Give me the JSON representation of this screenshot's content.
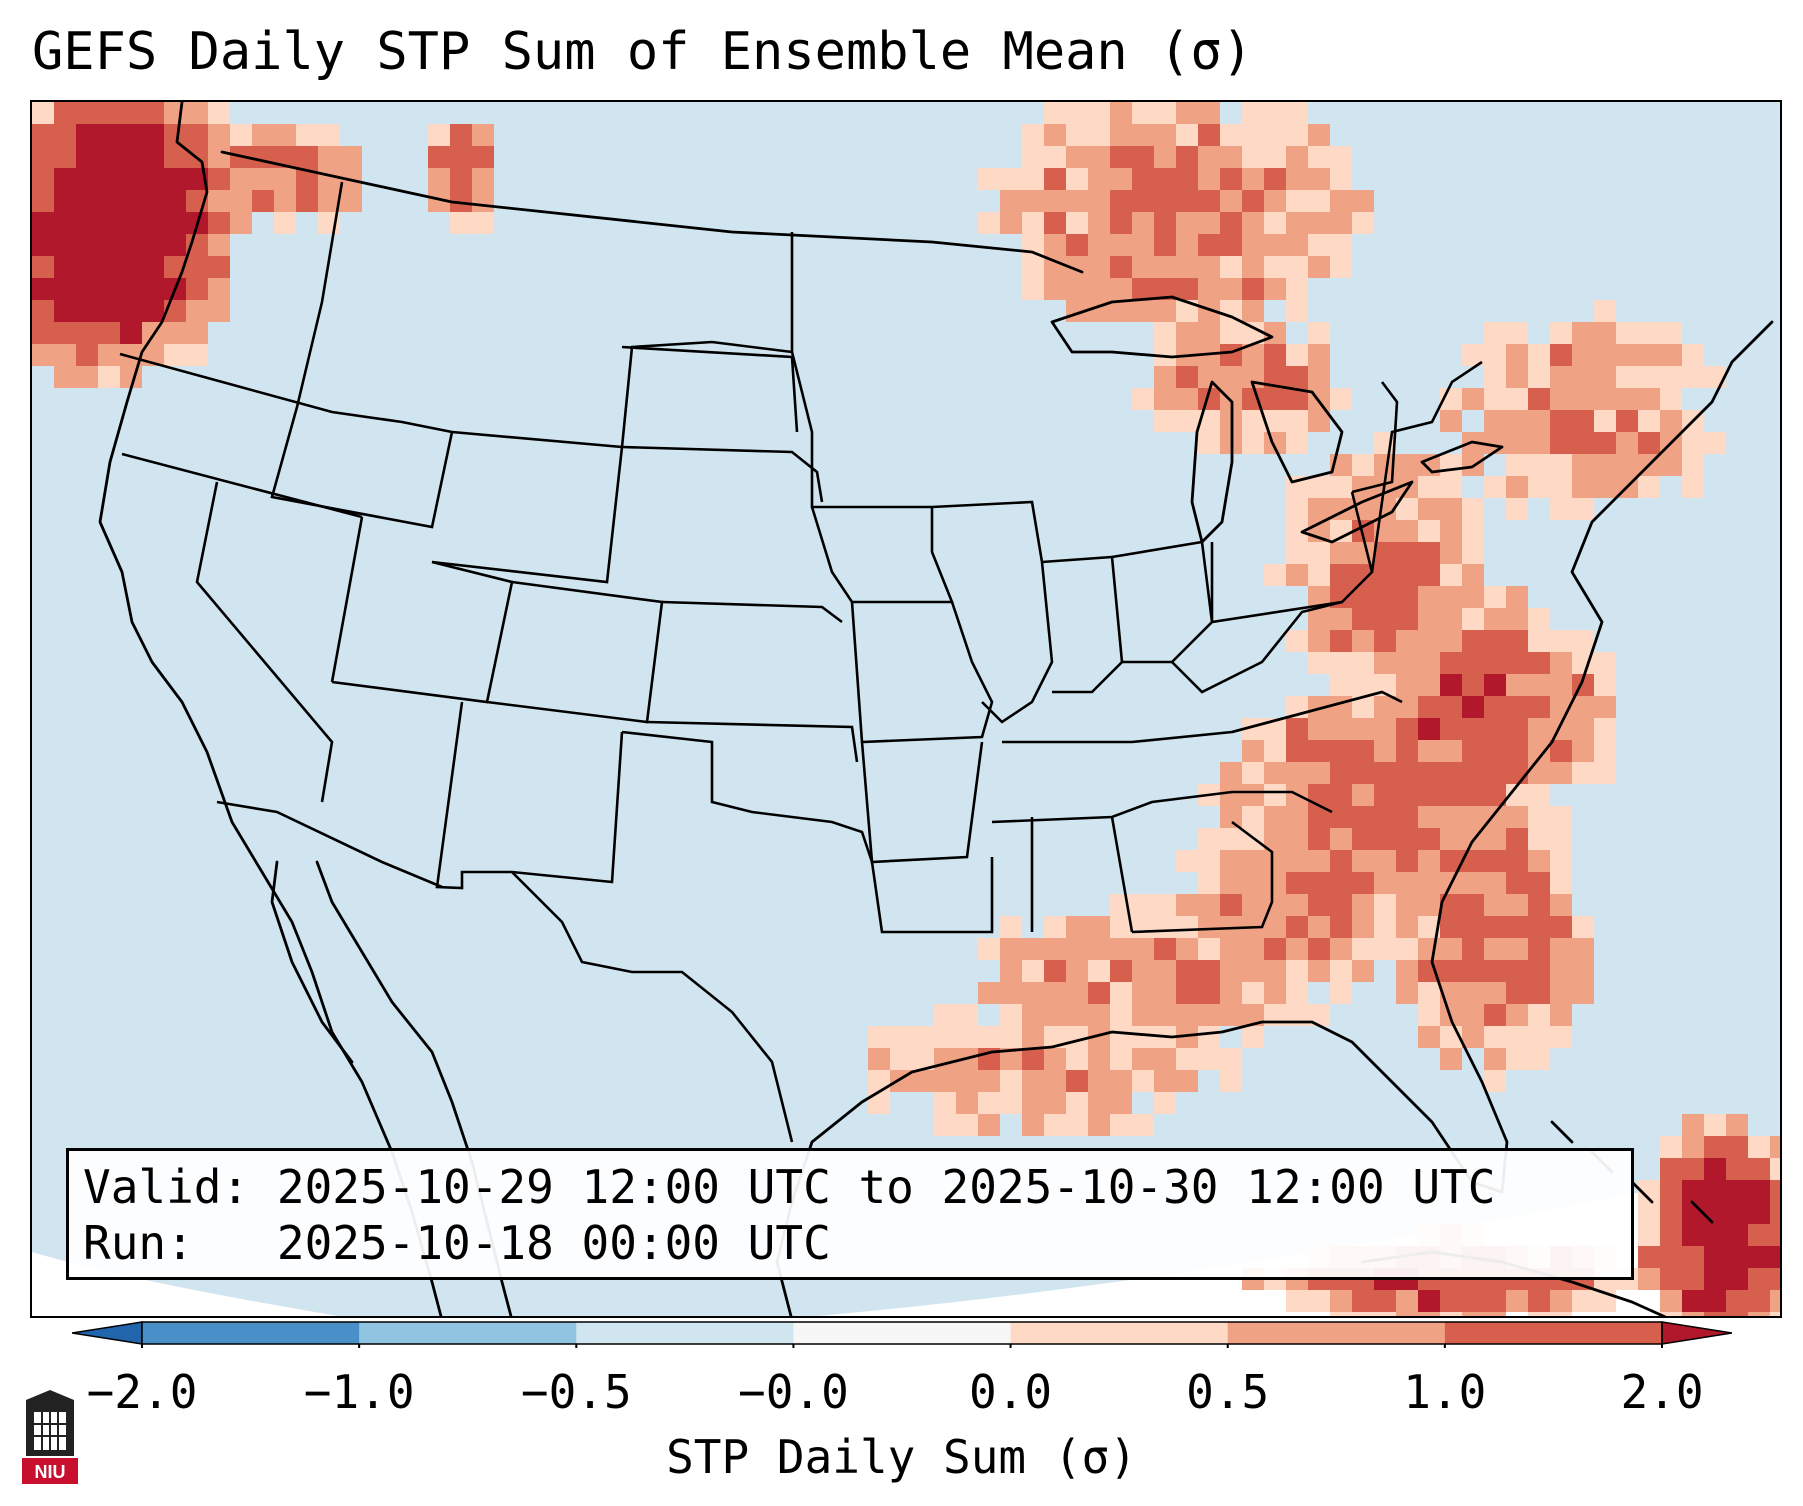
{
  "title": "GEFS Daily STP Sum of Ensemble Mean (σ)",
  "valid_label": "Valid:",
  "valid_value": "2025-10-29 12:00 UTC to 2025-10-30 12:00 UTC",
  "run_label": "Run:",
  "run_value": "2025-10-18 00:00 UTC",
  "colorbar": {
    "label": "STP Daily Sum (σ)",
    "ticks": [
      "−2.0",
      "−1.0",
      "−0.5",
      "−0.0",
      "0.0",
      "0.5",
      "1.0",
      "2.0"
    ],
    "colors": [
      "#4a90c8",
      "#91c4e0",
      "#d1e5f0",
      "#f7f7f7",
      "#fdd9c6",
      "#f0a284",
      "#d6604d",
      "#b2182b"
    ],
    "extend": "both"
  },
  "map": {
    "background_color": "#d1e5f0",
    "outside_color": "#ffffff",
    "coastline_color": "#000000"
  },
  "logo": {
    "text": "NIU",
    "color": "#c8102e",
    "icon": "university-tower-icon"
  }
}
